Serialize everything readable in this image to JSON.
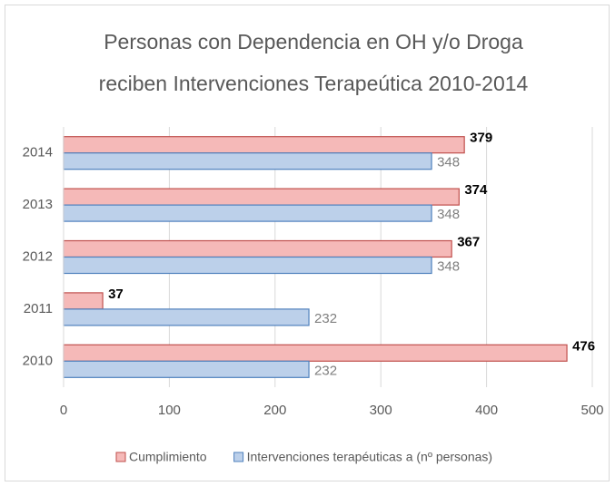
{
  "chart_data": {
    "type": "hbar",
    "title": [
      "Personas con Dependencia en OH y/o Droga",
      "reciben Intervenciones Terapeútica 2010-2014"
    ],
    "categories": [
      "2010",
      "2011",
      "2012",
      "2013",
      "2014"
    ],
    "series": [
      {
        "name": "Cumplimiento",
        "color": "#c0504d",
        "fill": "#f5b9b8",
        "values": [
          476,
          37,
          367,
          374,
          379
        ]
      },
      {
        "name": "Intervenciones terapéuticas a (nº personas)",
        "color": "#4f81bd",
        "fill": "#bcd0ea",
        "values": [
          232,
          232,
          348,
          348,
          348
        ]
      }
    ],
    "xlim": [
      0,
      500
    ],
    "xticks": [
      0,
      100,
      200,
      300,
      400,
      500
    ],
    "grid": true
  }
}
